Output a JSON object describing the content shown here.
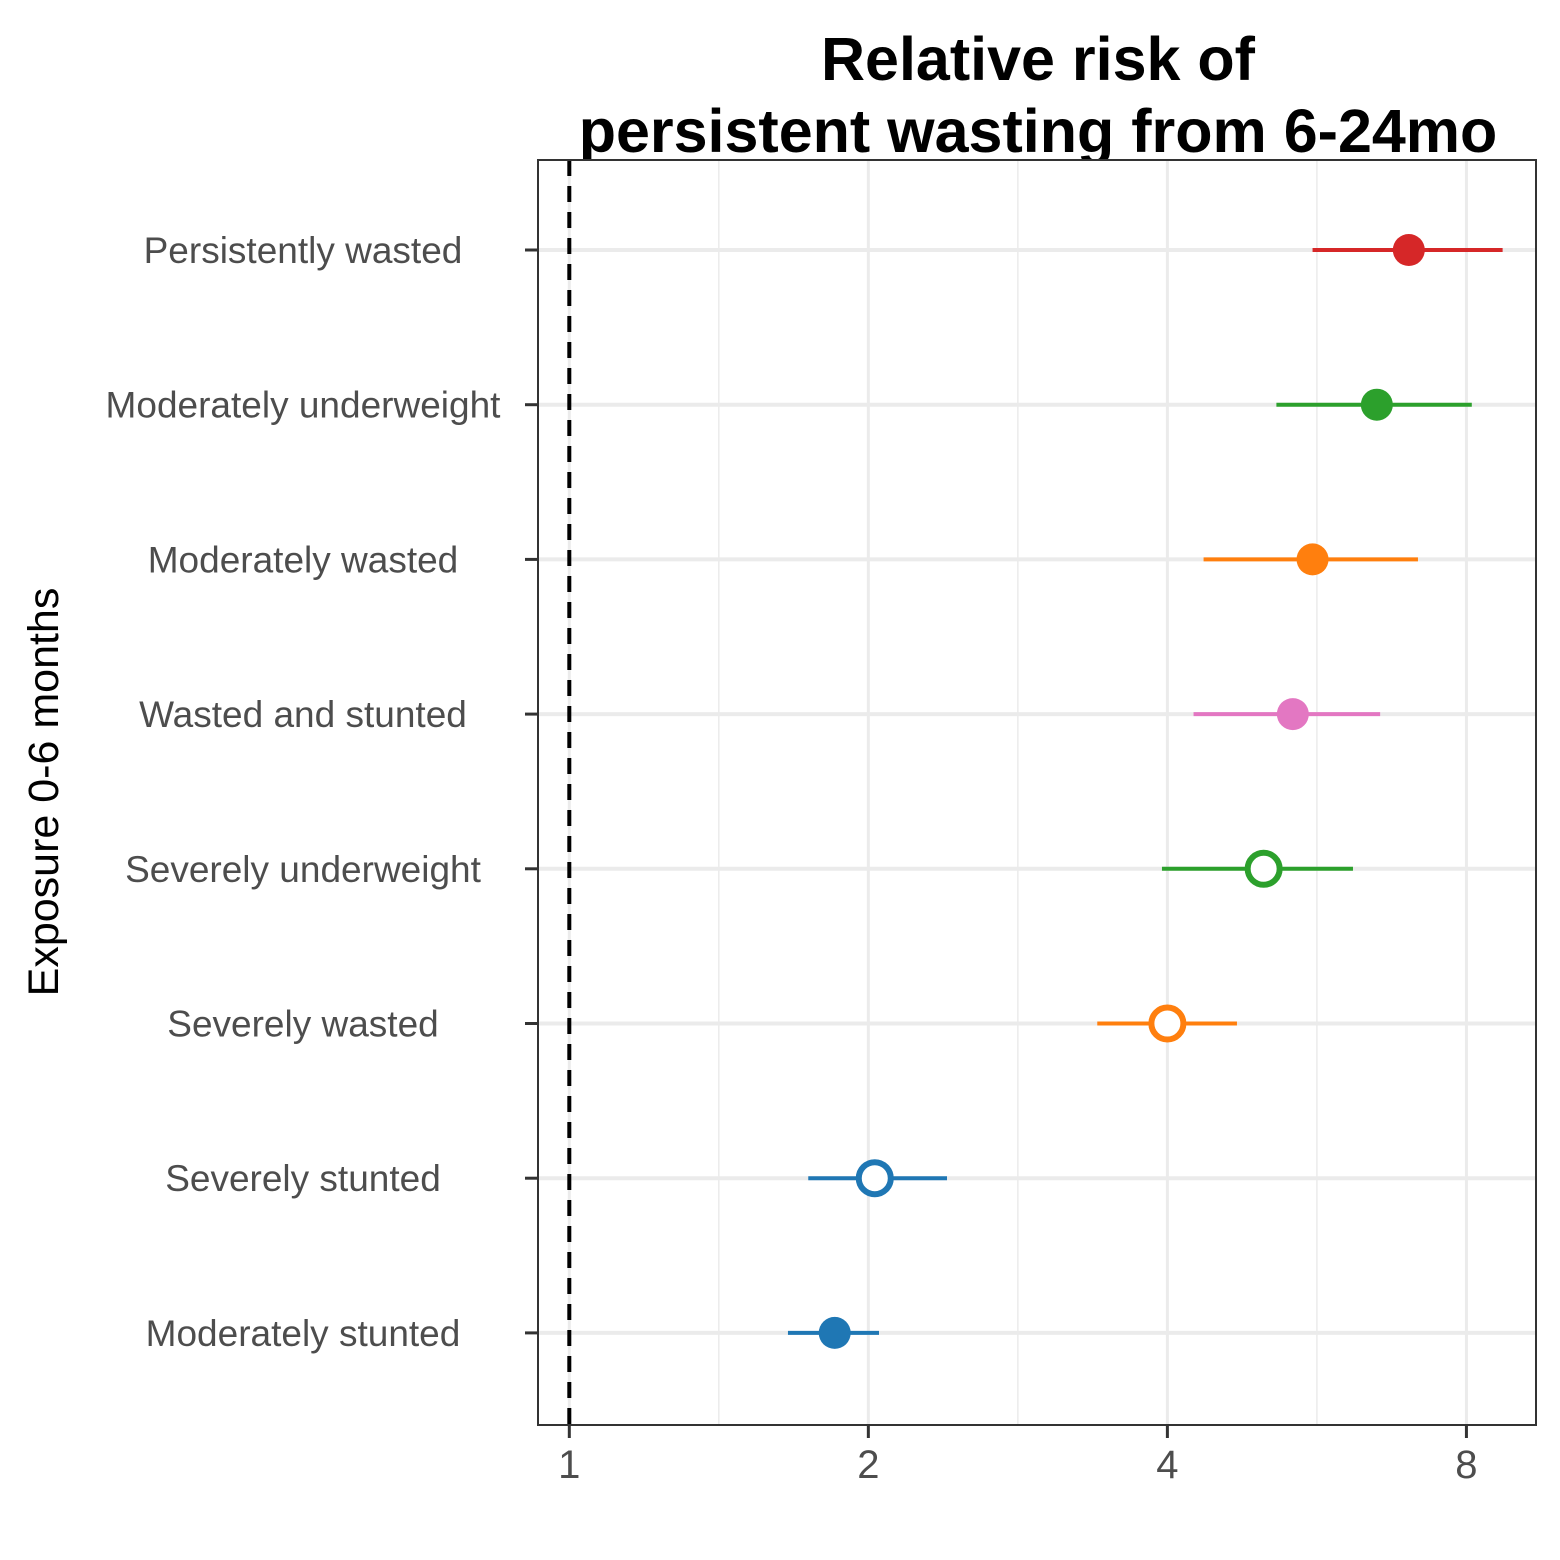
{
  "chart_data": {
    "type": "scatter",
    "subtype": "forest-plot",
    "title": [
      "Relative risk of",
      "persistent wasting from 6-24mo"
    ],
    "xlabel": "",
    "ylabel": "Exposure 0-6 months",
    "x_scale": "log2",
    "xlim": [
      0.93,
      9.4
    ],
    "x_ticks": [
      1,
      2,
      4,
      8
    ],
    "x_tick_labels": [
      "1",
      "2",
      "4",
      "8"
    ],
    "reference_line": 1,
    "grid": true,
    "categories": [
      "Persistently wasted",
      "Moderately underweight",
      "Moderately wasted",
      "Wasted and stunted",
      "Severely underweight",
      "Severely wasted",
      "Severely stunted",
      "Moderately stunted"
    ],
    "series": [
      {
        "category": "Persistently wasted",
        "estimate": 7.0,
        "lower": 5.6,
        "upper": 8.7,
        "color": "#d62728",
        "filled": true
      },
      {
        "category": "Moderately underweight",
        "estimate": 6.5,
        "lower": 5.15,
        "upper": 8.1,
        "color": "#2ca02c",
        "filled": true
      },
      {
        "category": "Moderately wasted",
        "estimate": 5.6,
        "lower": 4.35,
        "upper": 7.15,
        "color": "#ff7f0e",
        "filled": true
      },
      {
        "category": "Wasted and stunted",
        "estimate": 5.35,
        "lower": 4.25,
        "upper": 6.55,
        "color": "#e377c2",
        "filled": true
      },
      {
        "category": "Severely underweight",
        "estimate": 5.0,
        "lower": 3.95,
        "upper": 6.15,
        "color": "#2ca02c",
        "filled": false
      },
      {
        "category": "Severely wasted",
        "estimate": 4.0,
        "lower": 3.4,
        "upper": 4.7,
        "color": "#ff7f0e",
        "filled": false
      },
      {
        "category": "Severely stunted",
        "estimate": 2.03,
        "lower": 1.74,
        "upper": 2.4,
        "color": "#1f77b4",
        "filled": false
      },
      {
        "category": "Moderately stunted",
        "estimate": 1.85,
        "lower": 1.66,
        "upper": 2.05,
        "color": "#1f77b4",
        "filled": true
      }
    ]
  }
}
